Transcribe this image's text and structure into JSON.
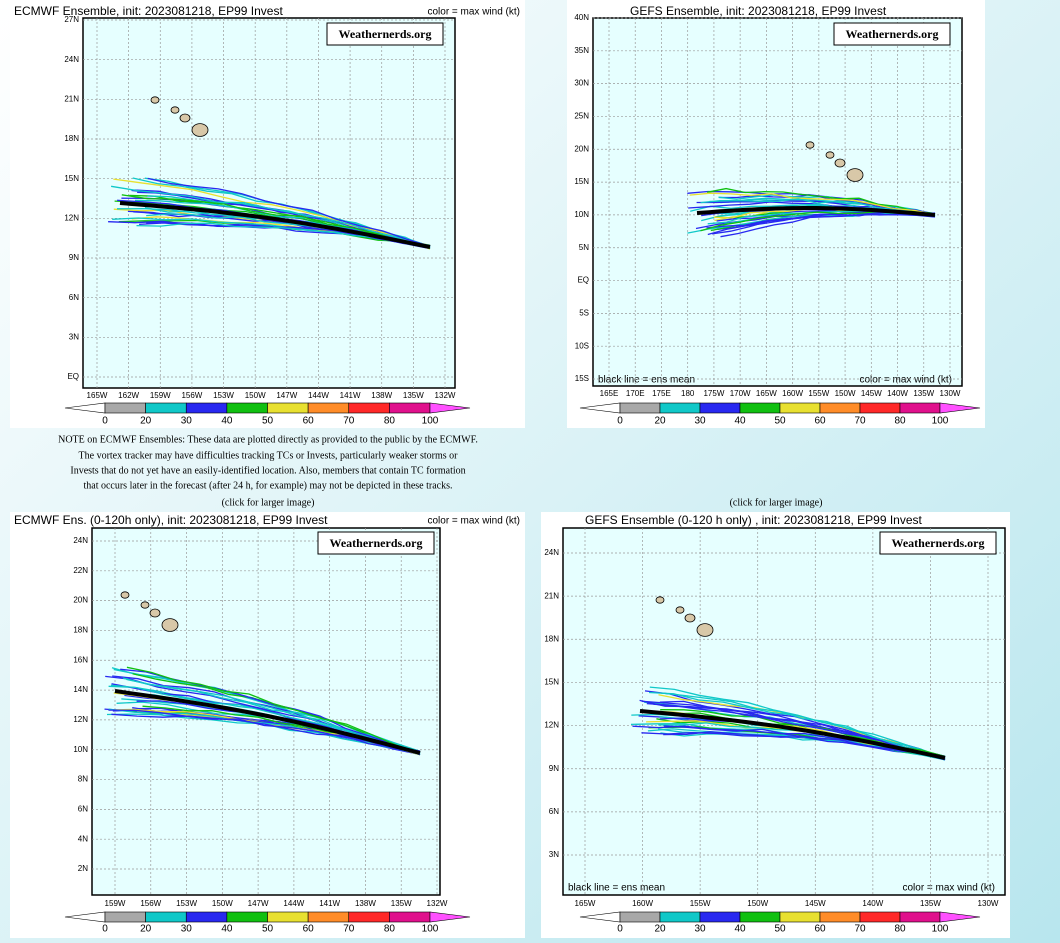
{
  "panels": [
    {
      "title": "ECMWF Ensemble, init: 2023081218, EP99 Invest",
      "wind_label": "color = max wind (kt)",
      "brand": "Weathernerds.org",
      "lat_labels": [
        "EQ",
        "3N",
        "6N",
        "9N",
        "12N",
        "15N",
        "18N",
        "21N",
        "24N",
        "27N"
      ],
      "lon_labels": [
        "165W",
        "162W",
        "159W",
        "156W",
        "153W",
        "150W",
        "147W",
        "144W",
        "141W",
        "138W",
        "135W",
        "132W"
      ]
    },
    {
      "title": "GEFS Ensemble, init: 2023081218, EP99 Invest",
      "wind_label": "color = max wind (kt)",
      "brand": "Weathernerds.org",
      "mean_label": "black line = ens mean",
      "lat_labels": [
        "15S",
        "10S",
        "5S",
        "EQ",
        "5N",
        "10N",
        "15N",
        "20N",
        "25N",
        "30N",
        "35N",
        "40N"
      ],
      "lon_labels": [
        "165E",
        "170E",
        "175E",
        "180",
        "175W",
        "170W",
        "165W",
        "160W",
        "155W",
        "150W",
        "145W",
        "140W",
        "135W",
        "130W"
      ]
    },
    {
      "title": "ECMWF Ens. (0-120h only), init: 2023081218, EP99 Invest",
      "wind_label": "color = max wind (kt)",
      "brand": "Weathernerds.org",
      "lat_labels": [
        "2N",
        "4N",
        "6N",
        "8N",
        "10N",
        "12N",
        "14N",
        "16N",
        "18N",
        "20N",
        "22N",
        "24N"
      ],
      "lon_labels": [
        "159W",
        "156W",
        "153W",
        "150W",
        "147W",
        "144W",
        "141W",
        "138W",
        "135W",
        "132W"
      ]
    },
    {
      "title": "GEFS Ensemble (0-120 h only) , init: 2023081218, EP99 Invest",
      "wind_label": "color = max wind (kt)",
      "brand": "Weathernerds.org",
      "mean_label": "black line = ens mean",
      "lat_labels": [
        "3N",
        "6N",
        "9N",
        "12N",
        "15N",
        "18N",
        "21N",
        "24N"
      ],
      "lon_labels": [
        "165W",
        "160W",
        "155W",
        "150W",
        "145W",
        "140W",
        "135W",
        "130W"
      ]
    }
  ],
  "colorbar_labels": [
    0,
    20,
    30,
    40,
    50,
    60,
    70,
    80,
    100
  ],
  "note": [
    "NOTE on ECMWF Ensembles: These data are plotted directly as provided to the public by the ECMWF.",
    "The vortex tracker may have difficulties tracking TCs or Invests, particularly weaker storms or",
    "Invests that do not yet have an easily-identified location. Also, members that contain TC formation",
    "that occurs later in the forecast (after 24 h, for example) may not be depicted in these tracks."
  ],
  "click_label": "(click for larger image)"
}
